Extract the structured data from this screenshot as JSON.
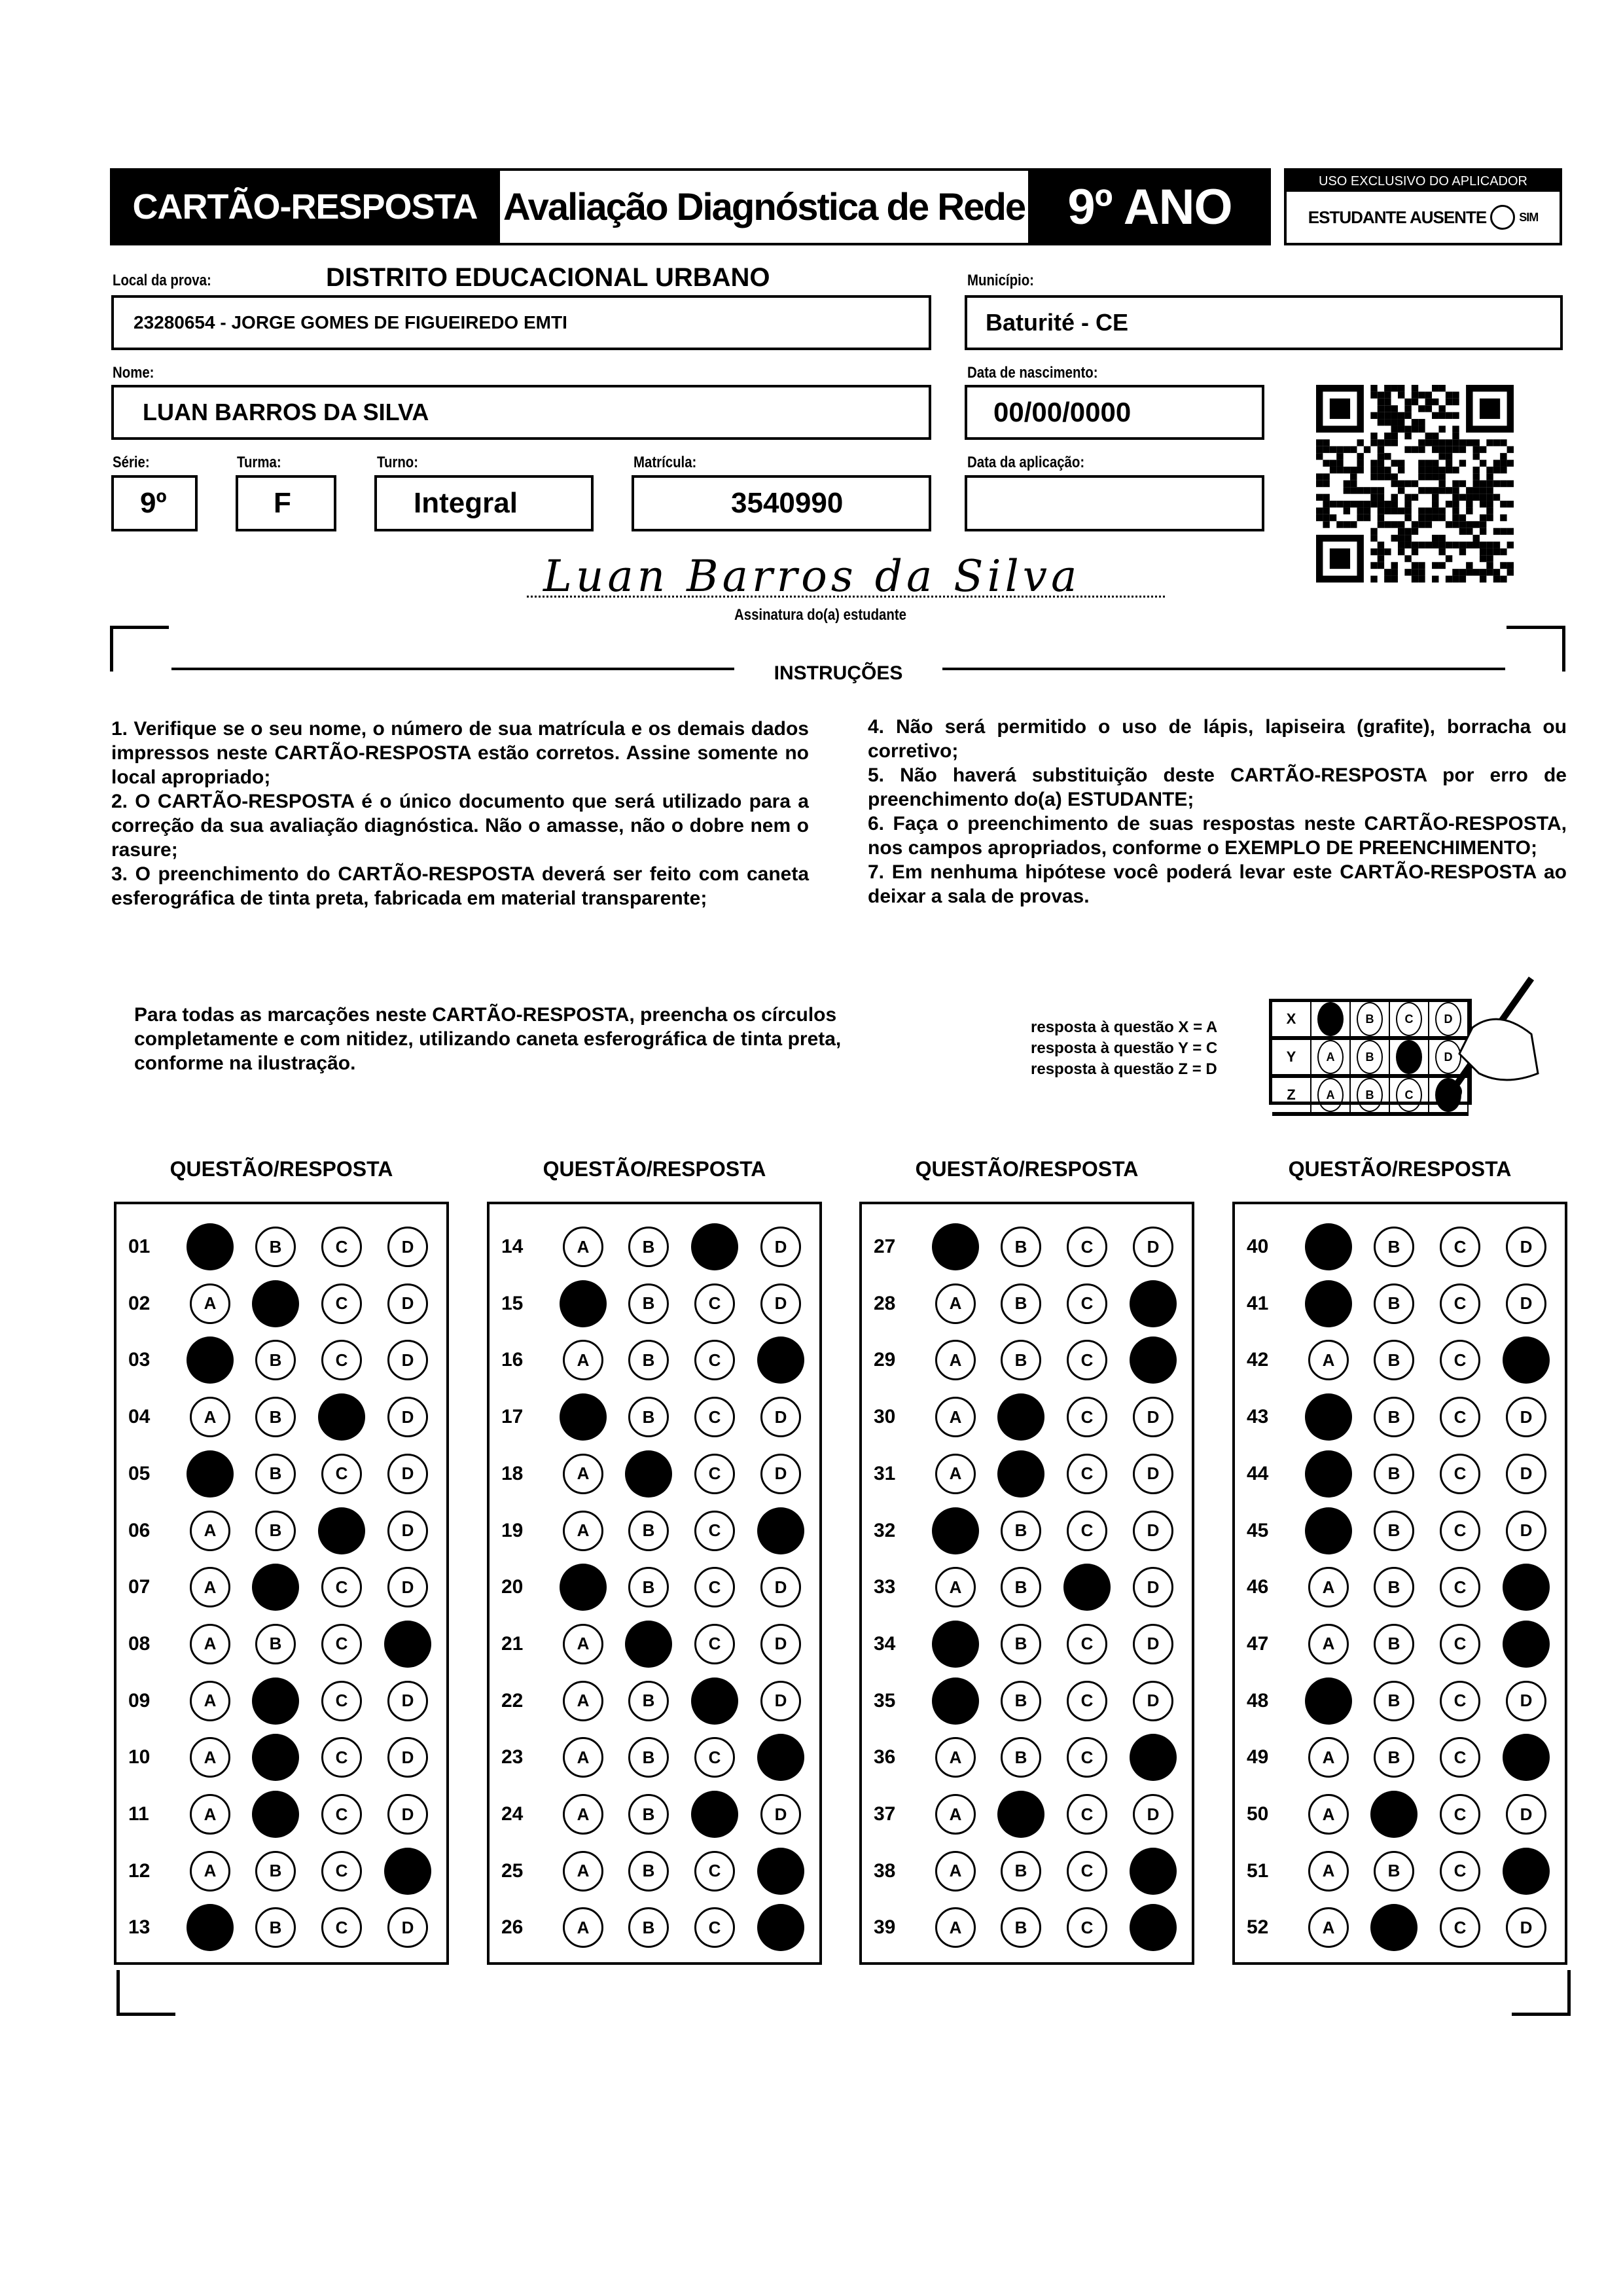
{
  "header": {
    "card_title": "CARTÃO-RESPOSTA",
    "exam_title": "Avaliação Diagnóstica de Rede",
    "grade": "9º ANO",
    "applicator_title": "USO EXCLUSIVO DO APLICADOR",
    "absent_label": "ESTUDANTE AUSENTE",
    "absent_option": "SIM"
  },
  "fields": {
    "local_label": "Local da prova:",
    "local_district": "DISTRITO EDUCACIONAL URBANO",
    "local_value": "23280654 - JORGE GOMES DE FIGUEIREDO EMTI",
    "municipio_label": "Município:",
    "municipio_value": "Baturité - CE",
    "nome_label": "Nome:",
    "nome_value": "LUAN BARROS DA SILVA",
    "nascimento_label": "Data de nascimento:",
    "nascimento_value": "00/00/0000",
    "serie_label": "Série:",
    "serie_value": "9º",
    "turma_label": "Turma:",
    "turma_value": "F",
    "turno_label": "Turno:",
    "turno_value": "Integral",
    "matricula_label": "Matrícula:",
    "matricula_value": "3540990",
    "aplicacao_label": "Data da aplicação:",
    "aplicacao_value": ""
  },
  "signature": {
    "handwritten": "Luan Barros da Silva",
    "label": "Assinatura do(a) estudante"
  },
  "instructions": {
    "title": "INSTRUÇÕES",
    "left": "1. Verifique se o seu nome, o número de sua matrícula e os demais dados impressos neste CARTÃO-RESPOSTA estão corretos. Assine somente no local apropriado;\n2. O CARTÃO-RESPOSTA é o único documento que será utilizado para a correção da sua avaliação diagnóstica. Não o amasse, não o dobre nem o rasure;\n3. O preenchimento do CARTÃO-RESPOSTA deverá ser feito com caneta esferográfica de tinta preta, fabricada em material transparente;",
    "right": "4. Não será permitido o uso de lápis, lapiseira (grafite), borracha ou corretivo;\n5. Não haverá substituição deste CARTÃO-RESPOSTA por erro de preenchimento do(a) ESTUDANTE;\n6. Faça o preenchimento de suas respostas neste CARTÃO-RESPOSTA, nos campos apropriados, conforme o EXEMPLO DE PREENCHIMENTO;\n7. Em nenhuma hipótese você poderá levar este CARTÃO-RESPOSTA ao deixar a sala de provas."
  },
  "example": {
    "text": "Para todas as marcações neste CARTÃO-RESPOSTA, preencha os círculos completamente e com nitidez, utilizando caneta esferográfica de tinta preta, conforme na ilustração.",
    "legend": [
      "resposta à questão X = A",
      "resposta à questão Y = C",
      "resposta à questão Z = D"
    ],
    "rows": [
      {
        "q": "X",
        "answer": "A"
      },
      {
        "q": "Y",
        "answer": "C"
      },
      {
        "q": "Z",
        "answer": "D"
      }
    ]
  },
  "answer_sheet": {
    "column_header": "QUESTÃO/RESPOSTA",
    "options": [
      "A",
      "B",
      "C",
      "D"
    ],
    "columns": [
      [
        [
          "01",
          "A"
        ],
        [
          "02",
          "B"
        ],
        [
          "03",
          "A"
        ],
        [
          "04",
          "C"
        ],
        [
          "05",
          "A"
        ],
        [
          "06",
          "C"
        ],
        [
          "07",
          "B"
        ],
        [
          "08",
          "D"
        ],
        [
          "09",
          "B"
        ],
        [
          "10",
          "B"
        ],
        [
          "11",
          "B"
        ],
        [
          "12",
          "D"
        ],
        [
          "13",
          "A"
        ]
      ],
      [
        [
          "14",
          "C"
        ],
        [
          "15",
          "A"
        ],
        [
          "16",
          "D"
        ],
        [
          "17",
          "A"
        ],
        [
          "18",
          "B"
        ],
        [
          "19",
          "D"
        ],
        [
          "20",
          "A"
        ],
        [
          "21",
          "B"
        ],
        [
          "22",
          "C"
        ],
        [
          "23",
          "D"
        ],
        [
          "24",
          "C"
        ],
        [
          "25",
          "D"
        ],
        [
          "26",
          "D"
        ]
      ],
      [
        [
          "27",
          "A"
        ],
        [
          "28",
          "D"
        ],
        [
          "29",
          "D"
        ],
        [
          "30",
          "B"
        ],
        [
          "31",
          "B"
        ],
        [
          "32",
          "A"
        ],
        [
          "33",
          "C"
        ],
        [
          "34",
          "A"
        ],
        [
          "35",
          "A"
        ],
        [
          "36",
          "D"
        ],
        [
          "37",
          "B"
        ],
        [
          "38",
          "D"
        ],
        [
          "39",
          "D"
        ]
      ],
      [
        [
          "40",
          "A"
        ],
        [
          "41",
          "A"
        ],
        [
          "42",
          "D"
        ],
        [
          "43",
          "A"
        ],
        [
          "44",
          "A"
        ],
        [
          "45",
          "A"
        ],
        [
          "46",
          "D"
        ],
        [
          "47",
          "D"
        ],
        [
          "48",
          "A"
        ],
        [
          "49",
          "D"
        ],
        [
          "50",
          "B"
        ],
        [
          "51",
          "D"
        ],
        [
          "52",
          "B"
        ]
      ]
    ]
  }
}
